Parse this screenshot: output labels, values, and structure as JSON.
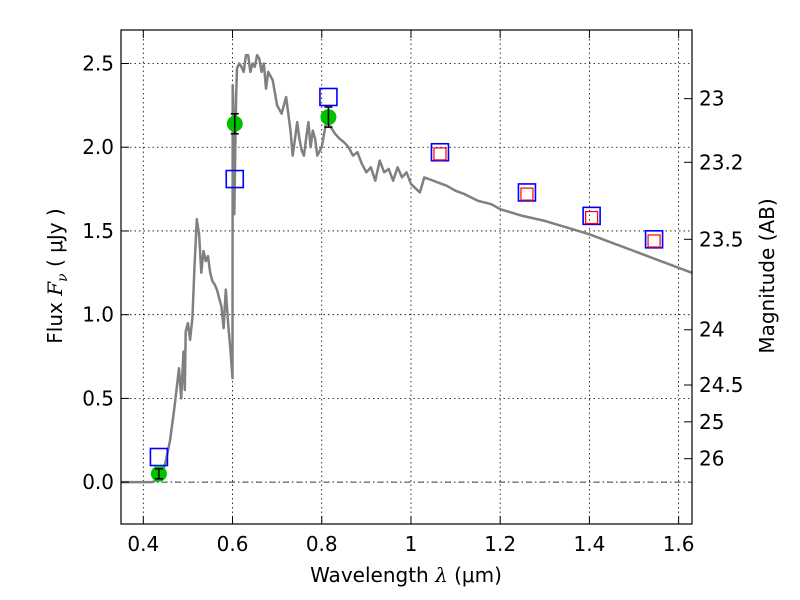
{
  "chart_data": {
    "type": "line",
    "title": "",
    "xlabel": "Wavelength",
    "xlabel_symbol": "λ",
    "xlabel_unit": "(μm)",
    "ylabel": "Flux",
    "ylabel_symbol": "F",
    "ylabel_subscript": "ν",
    "ylabel_unit": "( μJy )",
    "y2label": "Magnitude (AB)",
    "xlim": [
      0.35,
      1.63
    ],
    "ylim": [
      -0.25,
      2.7
    ],
    "grid": true,
    "legend": "none",
    "x_ticks": [
      {
        "value": 0.4,
        "label": "0.4"
      },
      {
        "value": 0.6,
        "label": "0.6"
      },
      {
        "value": 0.8,
        "label": "0.8"
      },
      {
        "value": 1.0,
        "label": "1"
      },
      {
        "value": 1.2,
        "label": "1.2"
      },
      {
        "value": 1.4,
        "label": "1.4"
      },
      {
        "value": 1.6,
        "label": "1.6"
      }
    ],
    "y_ticks": [
      {
        "value": 0.0,
        "label": "0.0"
      },
      {
        "value": 0.5,
        "label": "0.5"
      },
      {
        "value": 1.0,
        "label": "1.0"
      },
      {
        "value": 1.5,
        "label": "1.5"
      },
      {
        "value": 2.0,
        "label": "2.0"
      },
      {
        "value": 2.5,
        "label": "2.5"
      }
    ],
    "y2_ticks": [
      {
        "flux": 2.29,
        "label": "23"
      },
      {
        "flux": 1.91,
        "label": "23.2"
      },
      {
        "flux": 1.45,
        "label": "23.5"
      },
      {
        "flux": 0.91,
        "label": "24"
      },
      {
        "flux": 0.58,
        "label": "24.5"
      },
      {
        "flux": 0.36,
        "label": "25"
      },
      {
        "flux": 0.14,
        "label": "26"
      }
    ],
    "model_spectrum": {
      "color": "#808080",
      "x": [
        0.35,
        0.42,
        0.43,
        0.44,
        0.45,
        0.46,
        0.47,
        0.48,
        0.485,
        0.49,
        0.493,
        0.495,
        0.5,
        0.505,
        0.51,
        0.515,
        0.52,
        0.525,
        0.53,
        0.535,
        0.54,
        0.545,
        0.55,
        0.555,
        0.56,
        0.565,
        0.57,
        0.575,
        0.58,
        0.585,
        0.59,
        0.595,
        0.6,
        0.6005,
        0.602,
        0.604,
        0.606,
        0.608,
        0.61,
        0.615,
        0.62,
        0.625,
        0.63,
        0.635,
        0.64,
        0.645,
        0.65,
        0.655,
        0.66,
        0.665,
        0.67,
        0.675,
        0.68,
        0.69,
        0.7,
        0.71,
        0.72,
        0.73,
        0.735,
        0.74,
        0.745,
        0.75,
        0.755,
        0.76,
        0.765,
        0.77,
        0.775,
        0.78,
        0.785,
        0.79,
        0.8,
        0.81,
        0.82,
        0.83,
        0.84,
        0.85,
        0.86,
        0.87,
        0.88,
        0.89,
        0.9,
        0.91,
        0.92,
        0.93,
        0.94,
        0.95,
        0.96,
        0.97,
        0.98,
        0.99,
        1.0,
        1.02,
        1.03,
        1.04,
        1.06,
        1.08,
        1.1,
        1.12,
        1.15,
        1.18,
        1.2,
        1.25,
        1.3,
        1.35,
        1.4,
        1.45,
        1.5,
        1.55,
        1.6,
        1.63
      ],
      "y": [
        0.0,
        0.0,
        0.01,
        0.03,
        0.12,
        0.25,
        0.45,
        0.68,
        0.5,
        0.78,
        0.55,
        0.9,
        0.95,
        0.85,
        0.98,
        1.3,
        1.57,
        1.48,
        1.25,
        1.38,
        1.32,
        1.35,
        1.25,
        1.2,
        1.18,
        1.15,
        1.1,
        1.05,
        0.92,
        1.15,
        0.95,
        0.8,
        0.62,
        2.37,
        2.2,
        1.6,
        1.95,
        2.3,
        2.47,
        2.5,
        2.48,
        2.45,
        2.55,
        2.55,
        2.45,
        2.5,
        2.48,
        2.55,
        2.53,
        2.45,
        2.5,
        2.35,
        2.45,
        2.4,
        2.25,
        2.2,
        2.3,
        2.1,
        1.95,
        2.05,
        2.15,
        2.05,
        1.98,
        1.95,
        2.05,
        2.15,
        2.0,
        2.1,
        2.05,
        1.95,
        2.0,
        2.15,
        2.12,
        2.08,
        2.05,
        2.03,
        2.0,
        1.95,
        1.97,
        1.9,
        1.85,
        1.88,
        1.8,
        1.92,
        1.85,
        1.87,
        1.8,
        1.88,
        1.82,
        1.85,
        1.78,
        1.73,
        1.82,
        1.81,
        1.79,
        1.77,
        1.74,
        1.72,
        1.68,
        1.66,
        1.63,
        1.59,
        1.56,
        1.52,
        1.48,
        1.43,
        1.38,
        1.33,
        1.28,
        1.25
      ]
    },
    "series": [
      {
        "marker": "square-open",
        "color": "#0000ff",
        "points": [
          {
            "x": 0.435,
            "y": 0.15
          },
          {
            "x": 0.605,
            "y": 1.81
          },
          {
            "x": 0.815,
            "y": 2.3
          },
          {
            "x": 1.065,
            "y": 1.97
          },
          {
            "x": 1.26,
            "y": 1.73
          },
          {
            "x": 1.405,
            "y": 1.59
          },
          {
            "x": 1.545,
            "y": 1.45
          }
        ]
      },
      {
        "marker": "square-open-small",
        "color": "#ff0000",
        "points": [
          {
            "x": 1.065,
            "y": 1.96
          },
          {
            "x": 1.26,
            "y": 1.72
          },
          {
            "x": 1.405,
            "y": 1.58
          },
          {
            "x": 1.545,
            "y": 1.44
          }
        ]
      },
      {
        "marker": "circle-filled",
        "color": "#00c000",
        "points": [
          {
            "x": 0.435,
            "y": 0.05,
            "err": 0.03
          },
          {
            "x": 0.605,
            "y": 2.14,
            "err": 0.06
          },
          {
            "x": 0.815,
            "y": 2.18,
            "err": 0.06
          }
        ]
      }
    ],
    "colors": {
      "grid": "#000000",
      "zero_line": "#000000",
      "errorbar": "#000000"
    }
  }
}
